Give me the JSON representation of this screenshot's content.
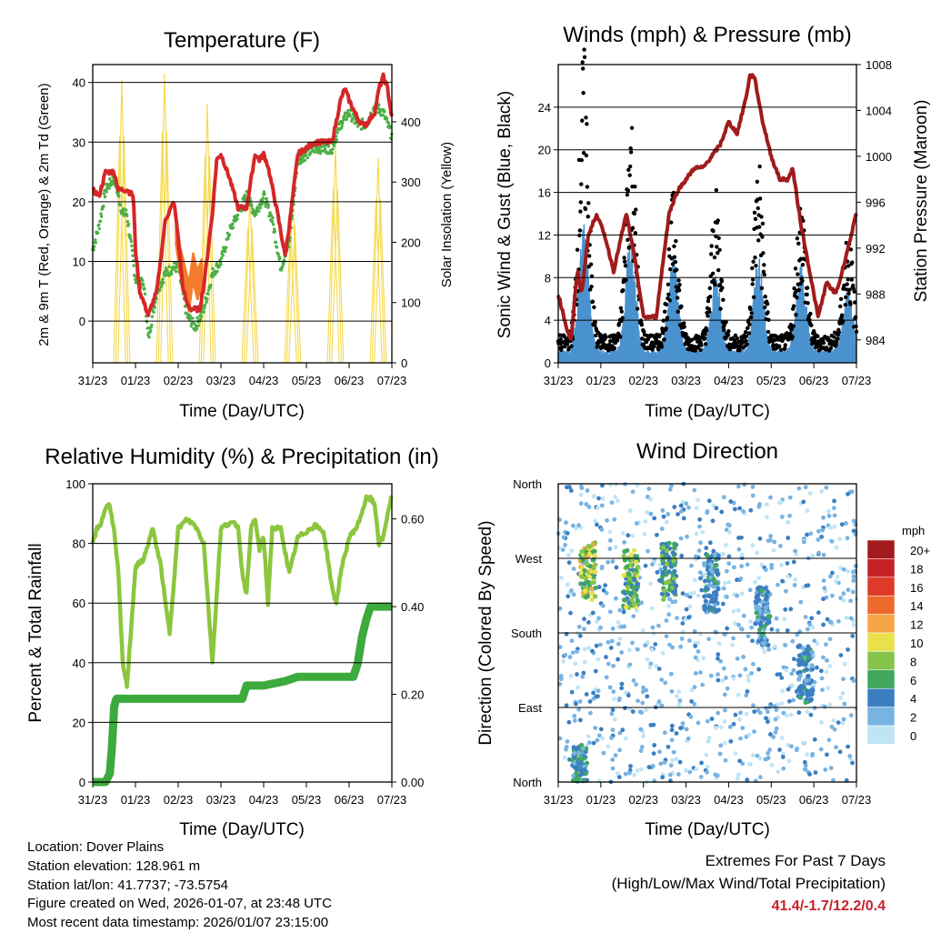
{
  "station": {
    "location_label": "Location: Dover Plains",
    "elevation_label": "Station elevation: 128.961 m",
    "latlon_label": "Station lat/lon: 41.7737; -73.5754",
    "created_label": "Figure created on Wed, 2026-01-07, at 23:48 UTC",
    "latest_label": "Most recent data timestamp: 2026/01/07 23:15:00"
  },
  "extremes": {
    "title": "Extremes For Past 7 Days",
    "subtitle": "(High/Low/Max Wind/Total Precipitation)",
    "values": "41.4/-1.7/12.2/0.4",
    "high": 41.4,
    "low": -1.7,
    "max_wind": 12.2,
    "total_precip": 0.4
  },
  "colors": {
    "temp_2m": "#d62728",
    "temp_9m": "#f47c2c",
    "dewpoint": "#4caf45",
    "insolation": "#f5d94a",
    "gust": "#000000",
    "wind": "#4b93cf",
    "pressure": "#a01b1b",
    "rh": "#8cc63e",
    "precip": "#3daa3d"
  },
  "chart_data": [
    {
      "type": "line",
      "title": "Temperature (F)",
      "xlabel": "Time (Day/UTC)",
      "ylabel": "2m & 9m T (Red, Orange) & 2m Td (Green)",
      "ylabel_right": "Solar Insolation (Yellow)",
      "xlim": [
        0,
        7
      ],
      "ylim": [
        -7,
        43
      ],
      "ylim_right": [
        0,
        495
      ],
      "x_ticks": [
        "31/23",
        "01/23",
        "02/23",
        "03/23",
        "04/23",
        "05/23",
        "06/23",
        "07/23"
      ],
      "y_ticks": [
        0,
        10,
        20,
        30,
        40
      ],
      "y_ticks_right": [
        0,
        100,
        200,
        300,
        400
      ],
      "grid": true,
      "series": [
        {
          "name": "2m T",
          "x": [
            0,
            0.15,
            0.3,
            0.5,
            0.6,
            0.8,
            0.95,
            1.0,
            1.1,
            1.3,
            1.5,
            1.7,
            1.9,
            2.0,
            2.1,
            2.2,
            2.3,
            2.5,
            2.6,
            2.8,
            2.9,
            3.0,
            3.2,
            3.4,
            3.6,
            3.8,
            3.9,
            4.0,
            4.1,
            4.3,
            4.5,
            4.6,
            4.8,
            5.0,
            5.2,
            5.4,
            5.6,
            5.8,
            5.9,
            6.0,
            6.2,
            6.3,
            6.4,
            6.5,
            6.6,
            6.7,
            6.8,
            6.9,
            7.0
          ],
          "values": [
            22,
            21,
            25,
            25,
            22,
            22,
            21,
            12,
            5,
            1,
            5,
            17,
            20,
            14,
            6,
            3,
            2,
            2,
            6,
            18,
            27,
            28,
            24,
            19,
            19,
            28,
            27,
            28,
            26,
            19,
            11,
            16,
            28,
            29,
            30,
            30,
            30,
            37,
            39,
            37,
            34,
            33,
            33,
            34,
            35,
            39,
            41,
            39,
            34
          ]
        },
        {
          "name": "9m T",
          "x": [
            1.95,
            2.05,
            2.15,
            2.25,
            2.35,
            2.45,
            2.55
          ],
          "values": [
            15,
            10,
            7,
            4,
            9,
            6,
            8
          ]
        },
        {
          "name": "2m Td",
          "x": [
            0,
            0.15,
            0.3,
            0.5,
            0.7,
            0.8,
            1.0,
            1.2,
            1.3,
            1.5,
            1.7,
            1.9,
            2.0,
            2.2,
            2.4,
            2.6,
            2.8,
            3.0,
            3.2,
            3.4,
            3.6,
            3.8,
            4.0,
            4.2,
            4.4,
            4.6,
            4.8,
            5.0,
            5.2,
            5.4,
            5.6,
            5.8,
            6.0,
            6.2,
            6.4,
            6.6,
            6.8,
            7.0
          ],
          "values": [
            12,
            16,
            22,
            24,
            18,
            18,
            7,
            6,
            -3,
            5,
            8,
            9,
            9,
            1,
            -1,
            2,
            8,
            10,
            15,
            18,
            21,
            18,
            21,
            17,
            9,
            13,
            27,
            28,
            29,
            29,
            29,
            33,
            35,
            33,
            33,
            36,
            35,
            31
          ]
        },
        {
          "name": "Solar Insolation",
          "axis": "right",
          "peaks_x": [
            0.68,
            1.68,
            2.68,
            3.68,
            4.68,
            5.68,
            6.68
          ],
          "peaks": [
            470,
            480,
            430,
            280,
            285,
            360,
            340
          ]
        }
      ]
    },
    {
      "type": "line",
      "title": "Winds (mph) & Pressure (mb)",
      "xlabel": "Time (Day/UTC)",
      "ylabel": "Sonic Wind & Gust (Blue, Black)",
      "ylabel_right": "Station Pressure (Maroon)",
      "xlim": [
        0,
        7
      ],
      "ylim": [
        0,
        28
      ],
      "ylim_right": [
        982,
        1008
      ],
      "x_ticks": [
        "31/23",
        "01/23",
        "02/23",
        "03/23",
        "04/23",
        "05/23",
        "06/23",
        "07/23"
      ],
      "y_ticks": [
        0,
        4,
        8,
        12,
        16,
        20,
        24
      ],
      "y_ticks_right": [
        984,
        988,
        992,
        996,
        1000,
        1004,
        1008
      ],
      "grid": true,
      "series": [
        {
          "name": "Gust",
          "burst_x": [
            0.6,
            1.7,
            2.7,
            3.7,
            4.7,
            5.7,
            6.8
          ],
          "burst_peak": [
            26,
            21,
            13,
            13,
            16,
            13,
            10
          ]
        },
        {
          "name": "Wind",
          "burst_x": [
            0.6,
            1.7,
            2.7,
            3.7,
            4.7,
            5.7,
            6.8
          ],
          "burst_peak": [
            12,
            11,
            9,
            7,
            9,
            8,
            6
          ]
        },
        {
          "name": "Pressure",
          "axis": "right",
          "x": [
            0,
            0.2,
            0.3,
            0.45,
            0.55,
            0.7,
            0.9,
            1.1,
            1.3,
            1.6,
            1.8,
            2.0,
            2.3,
            2.6,
            2.8,
            3.0,
            3.2,
            3.4,
            3.6,
            3.8,
            4.0,
            4.2,
            4.4,
            4.5,
            4.6,
            4.8,
            5.0,
            5.2,
            5.4,
            5.5,
            5.7,
            5.9,
            6.1,
            6.3,
            6.5,
            6.6,
            6.8,
            7.0
          ],
          "values": [
            988,
            985,
            984,
            990,
            988,
            993,
            995,
            993,
            990,
            995,
            991,
            986,
            986,
            995,
            997,
            998,
            999,
            999,
            1000,
            1001,
            1003,
            1002,
            1005,
            1007,
            1007,
            1003,
            1000,
            998,
            998,
            999,
            994,
            990,
            986,
            989,
            988,
            989,
            992,
            995
          ]
        }
      ]
    },
    {
      "type": "line",
      "title": "Relative Humidity (%) & Precipitation (in)",
      "xlabel": "Time (Day/UTC)",
      "ylabel": "Percent & Total Rainfall",
      "xlim": [
        0,
        7
      ],
      "ylim": [
        0,
        100
      ],
      "ylim_right": [
        0,
        0.68
      ],
      "x_ticks": [
        "31/23",
        "01/23",
        "02/23",
        "03/23",
        "04/23",
        "05/23",
        "06/23",
        "07/23"
      ],
      "y_ticks": [
        0,
        20,
        40,
        60,
        80,
        100
      ],
      "y_ticks_right": [
        "0.00",
        "0.20",
        "0.40",
        "0.60"
      ],
      "grid": true,
      "series": [
        {
          "name": "RH",
          "x": [
            0,
            0.1,
            0.2,
            0.3,
            0.4,
            0.5,
            0.6,
            0.7,
            0.8,
            1.0,
            1.2,
            1.4,
            1.6,
            1.7,
            1.8,
            2.0,
            2.2,
            2.4,
            2.6,
            2.7,
            2.8,
            3.0,
            3.2,
            3.4,
            3.5,
            3.6,
            3.7,
            3.8,
            3.9,
            4.0,
            4.1,
            4.2,
            4.4,
            4.6,
            4.8,
            5.0,
            5.2,
            5.4,
            5.5,
            5.6,
            5.7,
            5.8,
            6.0,
            6.2,
            6.4,
            6.5,
            6.6,
            6.7,
            6.8,
            6.9,
            7.0
          ],
          "values": [
            80,
            85,
            87,
            92,
            93,
            84,
            70,
            40,
            32,
            72,
            75,
            85,
            72,
            60,
            50,
            85,
            88,
            86,
            80,
            60,
            40,
            85,
            87,
            86,
            70,
            63,
            85,
            88,
            78,
            82,
            60,
            85,
            85,
            70,
            82,
            84,
            86,
            84,
            75,
            65,
            60,
            70,
            82,
            86,
            95,
            95,
            93,
            80,
            82,
            90,
            96
          ]
        },
        {
          "name": "Precipitation",
          "axis": "right",
          "x": [
            0,
            0.3,
            0.4,
            0.45,
            0.5,
            0.55,
            1.0,
            2.0,
            3.5,
            3.6,
            4.0,
            4.5,
            4.8,
            5.0,
            6.1,
            6.2,
            6.25,
            6.3,
            6.4,
            6.5,
            6.6,
            7.0
          ],
          "values": [
            0,
            0,
            0.02,
            0.08,
            0.17,
            0.19,
            0.19,
            0.19,
            0.19,
            0.22,
            0.22,
            0.23,
            0.24,
            0.24,
            0.24,
            0.27,
            0.3,
            0.33,
            0.37,
            0.4,
            0.4,
            0.4
          ]
        }
      ]
    },
    {
      "type": "scatter",
      "title": "Wind Direction",
      "xlabel": "Time (Day/UTC)",
      "ylabel": "Direction (Colored By Speed)",
      "xlim": [
        0,
        7
      ],
      "ylim": [
        0,
        360
      ],
      "x_ticks": [
        "31/23",
        "01/23",
        "02/23",
        "03/23",
        "04/23",
        "05/23",
        "06/23",
        "07/23"
      ],
      "y_ticks": [
        "North",
        "East",
        "South",
        "West",
        "North"
      ],
      "grid": true,
      "clusters": [
        {
          "x": 0.7,
          "dir": 255,
          "speed": 11
        },
        {
          "x": 1.7,
          "dir": 245,
          "speed": 9
        },
        {
          "x": 2.6,
          "dir": 255,
          "speed": 7
        },
        {
          "x": 3.6,
          "dir": 240,
          "speed": 5
        },
        {
          "x": 4.8,
          "dir": 200,
          "speed": 5
        },
        {
          "x": 5.8,
          "dir": 130,
          "speed": 5
        },
        {
          "x": 0.5,
          "dir": 10,
          "speed": 6
        }
      ],
      "legend": {
        "title": "mph",
        "labels": [
          "20+",
          "18",
          "16",
          "14",
          "12",
          "10",
          "8",
          "6",
          "4",
          "2",
          "0"
        ],
        "colors": [
          "#a31a1c",
          "#c42227",
          "#de3a29",
          "#ef6a2e",
          "#f6a546",
          "#e8e14a",
          "#86c44b",
          "#3fa85d",
          "#3b7fc2",
          "#78b3e2",
          "#bfe4f6"
        ]
      }
    }
  ]
}
